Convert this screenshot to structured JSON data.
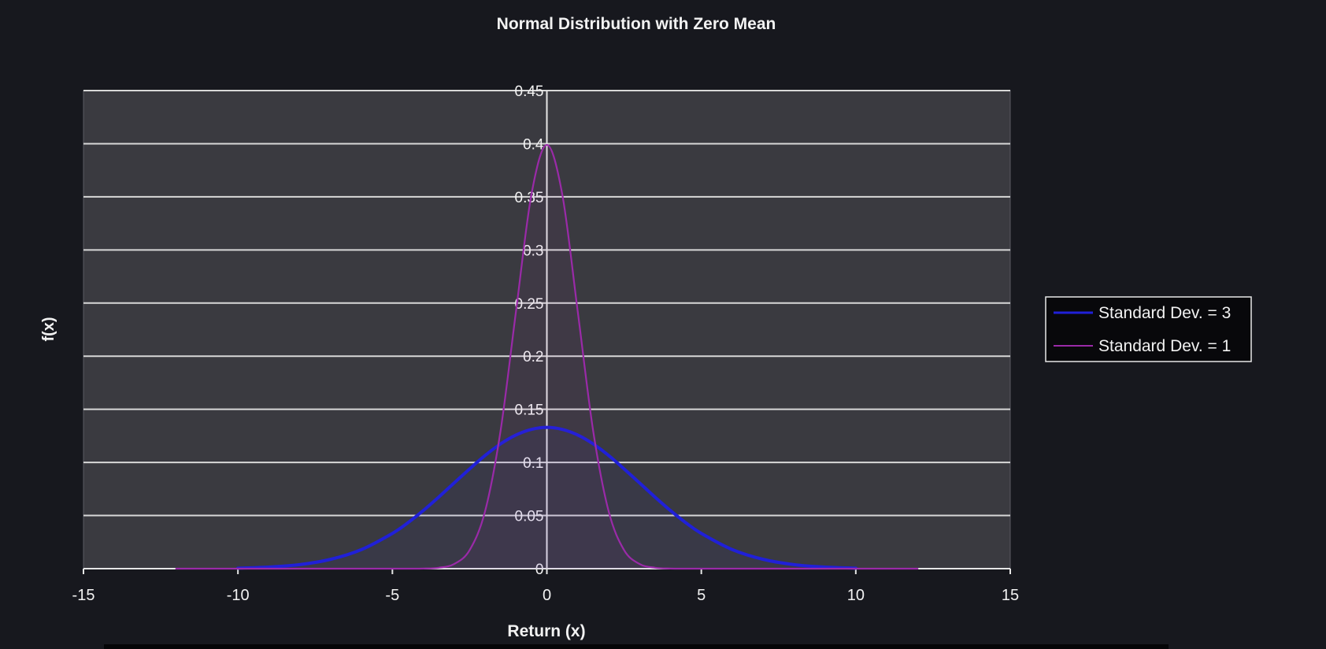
{
  "chart_data": {
    "type": "line",
    "title": "Normal Distribution with Zero Mean",
    "xlabel": "Return (x)",
    "ylabel": "f(x)",
    "xlim": [
      -15,
      15
    ],
    "ylim": [
      0,
      0.45
    ],
    "x_ticks": [
      "-15",
      "-10",
      "-5",
      "0",
      "5",
      "10",
      "15"
    ],
    "y_ticks": [
      "0",
      "0.05",
      "0.1",
      "0.15",
      "0.2",
      "0.25",
      "0.3",
      "0.35",
      "0.4",
      "0.45"
    ],
    "grid": true,
    "legend_position": "right",
    "x": [
      -12,
      -11,
      -10,
      -9,
      -8,
      -7,
      -6,
      -5,
      -4.5,
      -4,
      -3.5,
      -3,
      -2.5,
      -2,
      -1.5,
      -1,
      -0.5,
      0,
      0.5,
      1,
      1.5,
      2,
      2.5,
      3,
      3.5,
      4,
      4.5,
      5,
      6,
      7,
      8,
      9,
      10,
      11,
      12
    ],
    "series": [
      {
        "name": "Standard Dev. = 3",
        "color": "#2020d8",
        "x": [
          -10,
          -9,
          -8,
          -7,
          -6,
          -5,
          -4.5,
          -4,
          -3.5,
          -3,
          -2.5,
          -2,
          -1.5,
          -1,
          -0.5,
          0,
          0.5,
          1,
          1.5,
          2,
          2.5,
          3,
          3.5,
          4,
          4.5,
          5,
          6,
          7,
          8,
          9,
          10
        ],
        "values": [
          0.0005,
          0.0015,
          0.0038,
          0.0088,
          0.018,
          0.0332,
          0.0432,
          0.0547,
          0.0674,
          0.0807,
          0.0939,
          0.1065,
          0.1174,
          0.1258,
          0.1311,
          0.133,
          0.1311,
          0.1258,
          0.1174,
          0.1065,
          0.0939,
          0.0807,
          0.0674,
          0.0547,
          0.0432,
          0.0332,
          0.018,
          0.0088,
          0.0038,
          0.0015,
          0.0005
        ]
      },
      {
        "name": "Standard Dev. = 1",
        "color": "#9a2aa8",
        "x": [
          -12,
          -11,
          -10,
          -9,
          -8,
          -7,
          -6,
          -5,
          -4.5,
          -4,
          -3.5,
          -3,
          -2.5,
          -2,
          -1.5,
          -1,
          -0.5,
          0,
          0.5,
          1,
          1.5,
          2,
          2.5,
          3,
          3.5,
          4,
          4.5,
          5,
          6,
          7,
          8,
          9,
          10,
          11,
          12
        ],
        "values": [
          0,
          0,
          0,
          0,
          0,
          0,
          0,
          0,
          0,
          0.0001,
          0.0009,
          0.0044,
          0.0175,
          0.054,
          0.1295,
          0.242,
          0.3521,
          0.3989,
          0.3521,
          0.242,
          0.1295,
          0.054,
          0.0175,
          0.0044,
          0.0009,
          0.0001,
          0,
          0,
          0,
          0,
          0,
          0,
          0,
          0,
          0
        ]
      }
    ]
  }
}
